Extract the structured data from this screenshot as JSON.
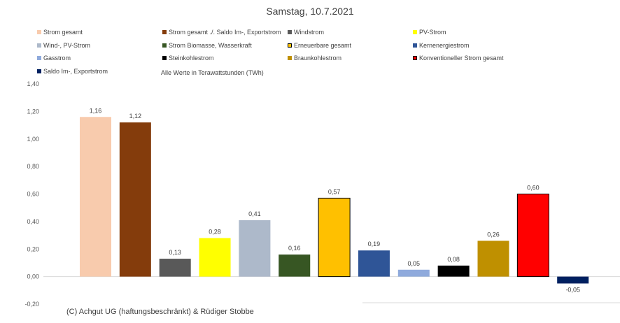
{
  "chart_data": {
    "type": "bar",
    "title": "Samstag, 10.7.2021",
    "note": "Alle Werte in Terawattstunden (TWh)",
    "copyright": "(C) Achgut UG (haftungsbeschränkt) & Rüdiger Stobbe",
    "ylim": [
      -0.2,
      1.4
    ],
    "yticks": [
      "-0,20",
      "0,00",
      "0,20",
      "0,40",
      "0,60",
      "0,80",
      "1,00",
      "1,20",
      "1,40"
    ],
    "yticks_values": [
      -0.2,
      0,
      0.2,
      0.4,
      0.6,
      0.8,
      1.0,
      1.2,
      1.4
    ],
    "grid": false,
    "legend_position": "top",
    "series": [
      {
        "name": "Strom gesamt",
        "value": 1.16,
        "label": "1,16",
        "color": "#F8CBAD",
        "outline": false
      },
      {
        "name": "Strom gesamt ./. Saldo Im-, Exportstrom",
        "value": 1.12,
        "label": "1,12",
        "color": "#843C0C",
        "outline": false
      },
      {
        "name": "Windstrom",
        "value": 0.13,
        "label": "0,13",
        "color": "#595959",
        "outline": false
      },
      {
        "name": "PV-Strom",
        "value": 0.28,
        "label": "0,28",
        "color": "#FFFF00",
        "outline": false
      },
      {
        "name": "Wind-, PV-Strom",
        "value": 0.41,
        "label": "0,41",
        "color": "#ADB9CA",
        "outline": false
      },
      {
        "name": "Strom Biomasse, Wasserkraft",
        "value": 0.16,
        "label": "0,16",
        "color": "#375623",
        "outline": false
      },
      {
        "name": "Erneuerbare gesamt",
        "value": 0.57,
        "label": "0,57",
        "color": "#FFC000",
        "outline": true
      },
      {
        "name": "Kernenergiestrom",
        "value": 0.19,
        "label": "0,19",
        "color": "#2F5597",
        "outline": false
      },
      {
        "name": "Gasstrom",
        "value": 0.05,
        "label": "0,05",
        "color": "#8FAADC",
        "outline": false
      },
      {
        "name": "Steinkohlestrom",
        "value": 0.08,
        "label": "0,08",
        "color": "#000000",
        "outline": false
      },
      {
        "name": "Braunkohlestrom",
        "value": 0.26,
        "label": "0,26",
        "color": "#BF9000",
        "outline": false
      },
      {
        "name": "Konventioneller Strom gesamt",
        "value": 0.6,
        "label": "0,60",
        "color": "#FF0000",
        "outline": true
      },
      {
        "name": "Saldo Im-, Exportstrom",
        "value": -0.05,
        "label": "-0,05",
        "color": "#002060",
        "outline": false
      }
    ]
  }
}
